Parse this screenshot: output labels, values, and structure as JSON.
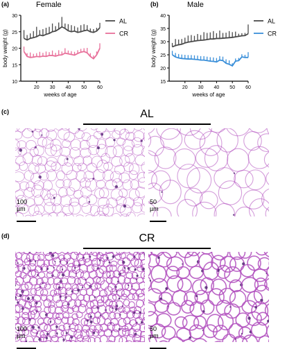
{
  "panels": {
    "a": {
      "label": "(a)",
      "title": "Female"
    },
    "b": {
      "label": "(b)",
      "title": "Male"
    },
    "c": {
      "label": "(c)",
      "group": "AL",
      "scale_left": "100 µm",
      "scale_right": "50 µm"
    },
    "d": {
      "label": "(d)",
      "group": "CR",
      "scale_left": "100 µm",
      "scale_right": "50 µm"
    }
  },
  "colors": {
    "AL": "#4a4a4a",
    "CR_female": "#e8709a",
    "CR_male": "#3a8fd9",
    "stain": "#b04dbd"
  },
  "chart_data": [
    {
      "type": "line",
      "title": "Female",
      "xlabel": "weeks of age",
      "ylabel": "body weight (g)",
      "xlim": [
        10,
        60
      ],
      "ylim": [
        10,
        30
      ],
      "xticks": [
        20,
        30,
        40,
        50,
        60
      ],
      "yticks": [
        10,
        15,
        20,
        25,
        30
      ],
      "legend": "right",
      "series": [
        {
          "name": "AL",
          "x": [
            12,
            14,
            16,
            18,
            20,
            22,
            24,
            26,
            28,
            30,
            32,
            34,
            36,
            38,
            40,
            42,
            44,
            46,
            48,
            50,
            52,
            54,
            56,
            58,
            60
          ],
          "y": [
            23,
            22.5,
            23,
            23.2,
            23.5,
            24,
            23.8,
            24.2,
            24.5,
            25,
            25.2,
            25.8,
            26.5,
            26,
            25.3,
            25,
            25.2,
            24.8,
            25,
            25.3,
            25.5,
            25,
            24.8,
            25.2,
            26.2
          ],
          "err": [
            2.5,
            1.5,
            1.5,
            2,
            3,
            1.5,
            2,
            2,
            2,
            2.5,
            1.5,
            2,
            3,
            1.5,
            2,
            2,
            1.5,
            1.5,
            2,
            2,
            1.5,
            1,
            1,
            1,
            1.5
          ]
        },
        {
          "name": "CR",
          "x": [
            12,
            14,
            16,
            18,
            20,
            22,
            24,
            26,
            28,
            30,
            32,
            34,
            36,
            38,
            40,
            42,
            44,
            46,
            48,
            50,
            52,
            54,
            56,
            58,
            60
          ],
          "y": [
            19,
            17.5,
            17.2,
            17.3,
            17.5,
            17.4,
            17.6,
            17.5,
            17.8,
            17.8,
            17.6,
            17.9,
            18,
            18.5,
            18.3,
            18.1,
            17.9,
            18.4,
            18.8,
            19,
            18.6,
            17.5,
            16.8,
            18,
            20
          ],
          "err": [
            1.5,
            1,
            1.5,
            1,
            1,
            1.5,
            1,
            1.5,
            1,
            1.5,
            1,
            1.5,
            1,
            1.5,
            1,
            1,
            1,
            1,
            1,
            1,
            1.5,
            1,
            1,
            1,
            1.5
          ]
        }
      ]
    },
    {
      "type": "line",
      "title": "Male",
      "xlabel": "weeks of age",
      "ylabel": "body weight (g)",
      "xlim": [
        10,
        60
      ],
      "ylim": [
        15,
        40
      ],
      "xticks": [
        20,
        30,
        40,
        50,
        60
      ],
      "yticks": [
        15,
        20,
        25,
        30,
        35,
        40
      ],
      "legend": "right",
      "series": [
        {
          "name": "AL",
          "x": [
            12,
            14,
            16,
            18,
            20,
            22,
            24,
            26,
            28,
            30,
            32,
            34,
            36,
            38,
            40,
            42,
            44,
            46,
            48,
            50,
            52,
            54,
            56,
            58,
            60
          ],
          "y": [
            28,
            28.5,
            28.8,
            29,
            29.5,
            29.8,
            30,
            30.2,
            30.4,
            30.5,
            30.6,
            30.8,
            31,
            31,
            31.2,
            31.2,
            31.3,
            31.4,
            31.5,
            31.6,
            31.8,
            32,
            32.2,
            32.3,
            33
          ],
          "err": [
            1.5,
            2.5,
            2,
            2,
            2,
            2.5,
            2.5,
            2,
            2.5,
            2,
            3,
            2.5,
            2.5,
            3,
            2,
            3,
            2,
            2,
            2.5,
            2,
            2,
            1,
            1,
            1,
            3.5
          ]
        },
        {
          "name": "CR",
          "x": [
            12,
            14,
            16,
            18,
            20,
            22,
            24,
            26,
            28,
            30,
            32,
            34,
            36,
            38,
            40,
            42,
            44,
            46,
            48,
            50,
            52,
            54,
            56,
            58,
            60
          ],
          "y": [
            25,
            24.2,
            23.8,
            23.6,
            23.5,
            23.4,
            23.4,
            23.3,
            23.2,
            23,
            23,
            22.8,
            22.6,
            22.5,
            22.3,
            23,
            22.8,
            21.8,
            21.4,
            20.8,
            22.6,
            22.8,
            24.2,
            24,
            24
          ],
          "err": [
            1.5,
            1.5,
            1.5,
            1.5,
            1.5,
            1.5,
            1.5,
            1.5,
            1.5,
            1.5,
            1.5,
            1.5,
            1.5,
            1.5,
            1.5,
            1.5,
            1.5,
            1.5,
            1.5,
            1,
            1,
            1,
            1,
            1,
            2
          ]
        }
      ]
    }
  ]
}
